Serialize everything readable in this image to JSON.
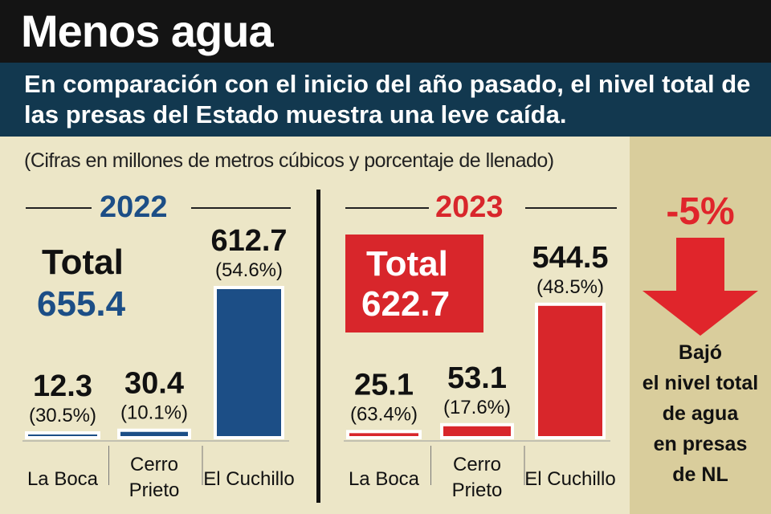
{
  "header": {
    "title": "Menos agua",
    "subtitle": "En comparación con el inicio del año pasado, el nivel total de las presas del Estado muestra una leve caída."
  },
  "note": "(Cifras en millones de metros cúbicos y porcentaje de llenado)",
  "panels": [
    {
      "year": "2022",
      "total_word": "Total",
      "total_value": "655.4"
    },
    {
      "year": "2023",
      "total_word": "Total",
      "total_value": "622.7"
    }
  ],
  "summary": {
    "change": "-5%",
    "caption": [
      "Bajó",
      "el nivel total",
      "de agua",
      "en presas",
      "de NL"
    ]
  },
  "colors": {
    "y2022": "#1c4e86",
    "y2023": "#d8262b",
    "arrow": "#e0252b"
  },
  "chart_data": [
    {
      "type": "bar",
      "title": "2022",
      "categories": [
        "La Boca",
        "Cerro Prieto",
        "El Cuchillo"
      ],
      "category_lines": [
        [
          "La Boca"
        ],
        [
          "Cerro",
          "Prieto"
        ],
        [
          "El Cuchillo"
        ]
      ],
      "values": [
        12.3,
        30.4,
        612.7
      ],
      "value_labels": [
        "12.3",
        "30.4",
        "612.7"
      ],
      "percent_labels": [
        "(30.5%)",
        "(10.1%)",
        "(54.6%)"
      ],
      "ylim": [
        0,
        612.7
      ]
    },
    {
      "type": "bar",
      "title": "2023",
      "categories": [
        "La Boca",
        "Cerro Prieto",
        "El Cuchillo"
      ],
      "category_lines": [
        [
          "La Boca"
        ],
        [
          "Cerro",
          "Prieto"
        ],
        [
          "El Cuchillo"
        ]
      ],
      "values": [
        25.1,
        53.1,
        544.5
      ],
      "value_labels": [
        "25.1",
        "53.1",
        "544.5"
      ],
      "percent_labels": [
        "(63.4%)",
        "(17.6%)",
        "(48.5%)"
      ],
      "ylim": [
        0,
        612.7
      ]
    }
  ]
}
